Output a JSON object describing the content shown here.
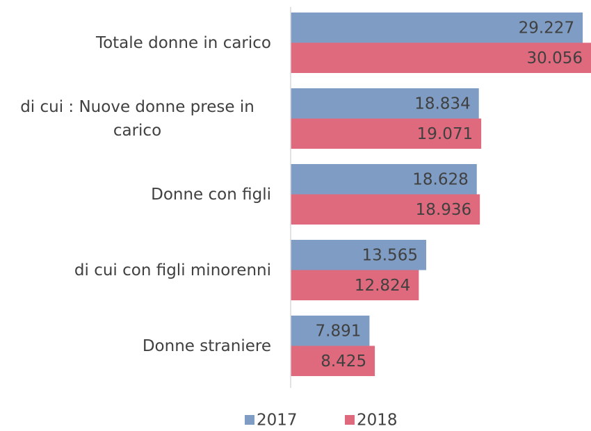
{
  "chart_data": {
    "type": "barh",
    "categories": [
      "Totale donne in carico",
      "di cui : Nuove donne prese in carico",
      "Donne con figli",
      "di cui con figli minorenni",
      "Donne straniere"
    ],
    "series": [
      {
        "name": "2017",
        "color": "#7f9dc4",
        "values": [
          29227,
          18834,
          18628,
          13565,
          7891
        ],
        "value_labels": [
          "29.227",
          "18.834",
          "18.628",
          "13.565",
          "7.891"
        ]
      },
      {
        "name": "2018",
        "color": "#e06a7d",
        "values": [
          30056,
          19071,
          18936,
          12824,
          8425
        ],
        "value_labels": [
          "30.056",
          "19.071",
          "18.936",
          "12.824",
          "8.425"
        ]
      }
    ],
    "legend": "bottom"
  }
}
